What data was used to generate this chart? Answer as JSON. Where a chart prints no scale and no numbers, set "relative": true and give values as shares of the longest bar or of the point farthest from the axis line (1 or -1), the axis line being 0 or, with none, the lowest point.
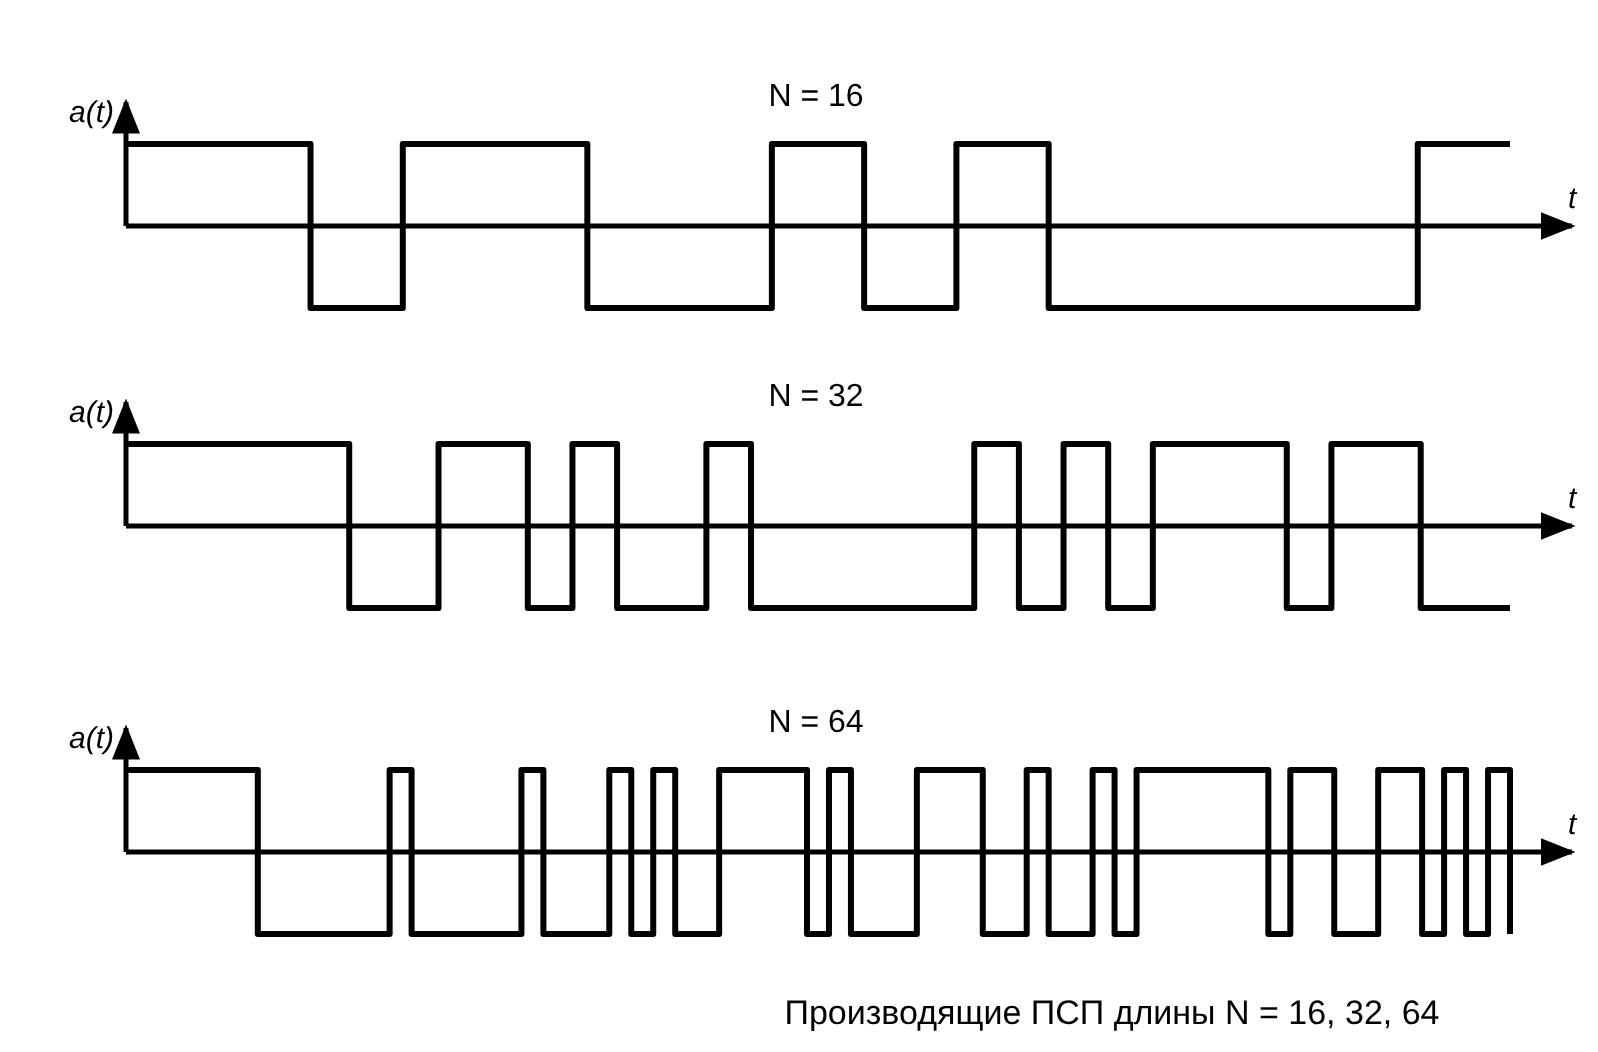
{
  "chart_data": [
    {
      "type": "step",
      "title": "N = 16",
      "xlabel": "t",
      "ylabel": "a(t)",
      "relative": true,
      "color": "#000000",
      "categories": [
        null,
        null,
        null,
        null,
        null,
        null,
        null,
        null,
        null,
        null,
        null,
        null,
        null,
        null,
        null,
        null
      ],
      "values": [
        1,
        1,
        -1,
        1,
        1,
        -1,
        -1,
        1,
        -1,
        1,
        -1,
        -1,
        -1,
        -1,
        1,
        1
      ]
    },
    {
      "type": "step",
      "title": "N = 32",
      "xlabel": "t",
      "ylabel": "a(t)",
      "relative": true,
      "color": "#000000",
      "categories": [
        null,
        null,
        null,
        null,
        null,
        null,
        null,
        null,
        null,
        null,
        null,
        null,
        null,
        null,
        null,
        null,
        null,
        null,
        null,
        null,
        null,
        null,
        null,
        null,
        null,
        null,
        null,
        null,
        null,
        null,
        null,
        null
      ],
      "values": [
        1,
        1,
        1,
        1,
        1,
        -1,
        -1,
        1,
        1,
        -1,
        1,
        -1,
        -1,
        1,
        -1,
        -1,
        -1,
        -1,
        -1,
        1,
        -1,
        1,
        -1,
        1,
        1,
        1,
        -1,
        1,
        1,
        -1,
        -1,
        -1
      ]
    },
    {
      "type": "step",
      "title": "N = 64",
      "xlabel": "t",
      "ylabel": "a(t)",
      "relative": true,
      "color": "#000000",
      "categories": [
        null,
        null,
        null,
        null,
        null,
        null,
        null,
        null,
        null,
        null,
        null,
        null,
        null,
        null,
        null,
        null,
        null,
        null,
        null,
        null,
        null,
        null,
        null,
        null,
        null,
        null,
        null,
        null,
        null,
        null,
        null,
        null,
        null,
        null,
        null,
        null,
        null,
        null,
        null,
        null,
        null,
        null,
        null,
        null,
        null,
        null,
        null,
        null,
        null,
        null,
        null,
        null,
        null,
        null,
        null,
        null,
        null,
        null,
        null,
        null,
        null,
        null,
        null,
        null
      ],
      "values": [
        1,
        1,
        1,
        1,
        1,
        1,
        -1,
        -1,
        -1,
        -1,
        -1,
        -1,
        1,
        -1,
        -1,
        -1,
        -1,
        -1,
        1,
        -1,
        -1,
        -1,
        1,
        -1,
        1,
        -1,
        -1,
        1,
        1,
        1,
        1,
        -1,
        1,
        -1,
        -1,
        -1,
        1,
        1,
        1,
        -1,
        -1,
        1,
        -1,
        -1,
        1,
        -1,
        1,
        1,
        1,
        1,
        1,
        1,
        -1,
        1,
        1,
        -1,
        -1,
        1,
        1,
        -1,
        1,
        -1,
        1,
        -1
      ],
      "annotations": [
        "Производящие ПСП  длины N = 16, 32, 64"
      ]
    }
  ]
}
